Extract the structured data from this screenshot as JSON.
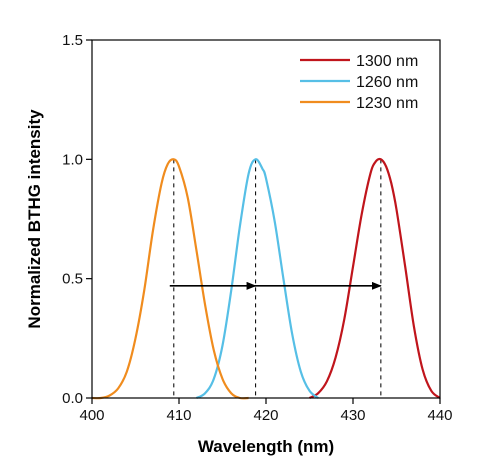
{
  "chart_data": {
    "type": "line",
    "title": "",
    "xlabel": "Wavelength (nm)",
    "ylabel": "Normalized BTHG intensity",
    "xlim": [
      400,
      440
    ],
    "ylim": [
      0.0,
      1.5
    ],
    "xticks": [
      400,
      410,
      420,
      430,
      440
    ],
    "yticks": [
      0.0,
      0.5,
      1.0,
      1.5
    ],
    "xtick_labels": [
      "400",
      "410",
      "420",
      "430",
      "440"
    ],
    "ytick_labels": [
      "0.0",
      "0.5",
      "1.0",
      "1.5"
    ],
    "grid": false,
    "legend_position": "top-right",
    "series": [
      {
        "name": "1300 nm",
        "color": "#c0151c",
        "peak": 433.2,
        "x": [
          425.0,
          426.0,
          427.0,
          428.0,
          429.0,
          430.0,
          431.0,
          432.0,
          432.6,
          433.2,
          433.8,
          434.4,
          435.0,
          436.0,
          437.0,
          438.0,
          439.0,
          440.0
        ],
        "y": [
          0.0,
          0.02,
          0.07,
          0.17,
          0.33,
          0.55,
          0.77,
          0.94,
          0.99,
          1.0,
          0.97,
          0.9,
          0.79,
          0.55,
          0.3,
          0.12,
          0.03,
          0.0
        ]
      },
      {
        "name": "1260 nm",
        "color": "#56bfe6",
        "peak": 418.8,
        "x": [
          412.0,
          413.0,
          414.0,
          415.0,
          416.0,
          417.0,
          418.0,
          418.8,
          419.6,
          420.0,
          421.0,
          422.0,
          423.0,
          424.0,
          425.0,
          426.0
        ],
        "y": [
          0.0,
          0.02,
          0.08,
          0.22,
          0.45,
          0.72,
          0.94,
          1.0,
          0.96,
          0.92,
          0.74,
          0.5,
          0.27,
          0.11,
          0.03,
          0.0
        ]
      },
      {
        "name": "1230 nm",
        "color": "#f08c1e",
        "peak": 409.4,
        "x": [
          400.0,
          401.0,
          402.0,
          403.0,
          404.0,
          405.0,
          406.0,
          407.0,
          408.0,
          408.7,
          409.4,
          410.0,
          411.0,
          412.0,
          413.0,
          414.0,
          415.0,
          416.0,
          417.0,
          418.0
        ],
        "y": [
          0.0,
          0.0,
          0.01,
          0.04,
          0.11,
          0.25,
          0.45,
          0.7,
          0.9,
          0.98,
          1.0,
          0.97,
          0.84,
          0.62,
          0.39,
          0.2,
          0.08,
          0.02,
          0.0,
          0.0
        ]
      }
    ],
    "peak_markers": [
      409.4,
      418.8,
      433.2
    ],
    "arrows": [
      {
        "from": 409.4,
        "to": 418.8,
        "y": 0.47
      },
      {
        "from": 418.8,
        "to": 433.2,
        "y": 0.47
      }
    ]
  }
}
